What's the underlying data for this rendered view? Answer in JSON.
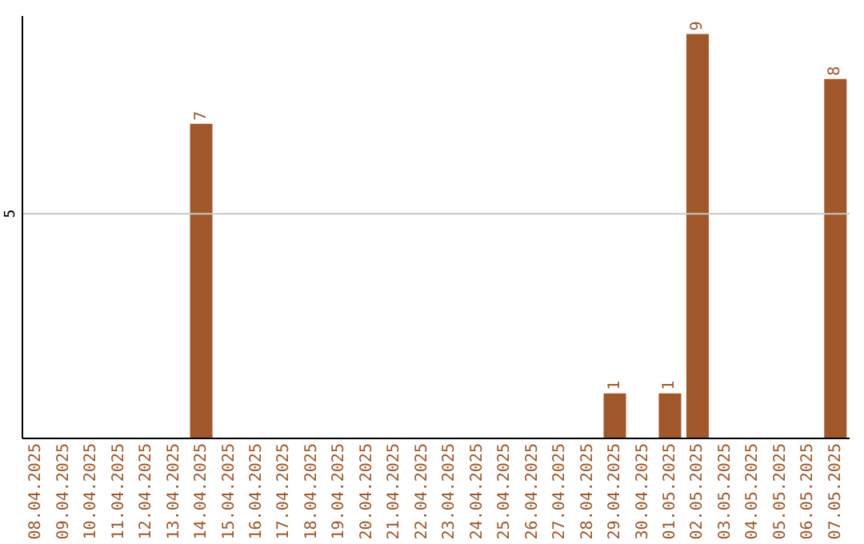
{
  "chart_data": {
    "type": "bar",
    "categories": [
      "08.04.2025",
      "09.04.2025",
      "10.04.2025",
      "11.04.2025",
      "12.04.2025",
      "13.04.2025",
      "14.04.2025",
      "15.04.2025",
      "16.04.2025",
      "17.04.2025",
      "18.04.2025",
      "19.04.2025",
      "20.04.2025",
      "21.04.2025",
      "22.04.2025",
      "23.04.2025",
      "24.04.2025",
      "25.04.2025",
      "26.04.2025",
      "27.04.2025",
      "28.04.2025",
      "29.04.2025",
      "30.04.2025",
      "01.05.2025",
      "02.05.2025",
      "03.05.2025",
      "04.05.2025",
      "05.05.2025",
      "06.05.2025",
      "07.05.2025"
    ],
    "values": [
      0,
      0,
      0,
      0,
      0,
      0,
      7,
      0,
      0,
      0,
      0,
      0,
      0,
      0,
      0,
      0,
      0,
      0,
      0,
      0,
      0,
      1,
      0,
      1,
      9,
      0,
      0,
      0,
      0,
      8
    ],
    "value_labels": [
      null,
      null,
      null,
      null,
      null,
      null,
      "7",
      null,
      null,
      null,
      null,
      null,
      null,
      null,
      null,
      null,
      null,
      null,
      null,
      null,
      null,
      "1",
      null,
      "1",
      "9",
      null,
      null,
      null,
      null,
      "8"
    ],
    "color": "#a0572a",
    "ylim": [
      0,
      9.4
    ],
    "yticks": [
      5
    ],
    "grid": "y"
  }
}
